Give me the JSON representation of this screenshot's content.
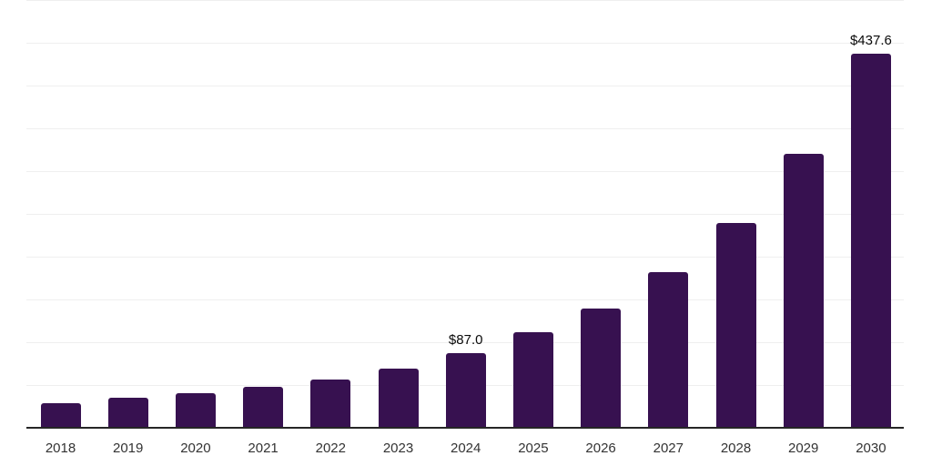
{
  "chart_data": {
    "type": "bar",
    "title": "",
    "xlabel": "",
    "ylabel": "",
    "categories": [
      "2018",
      "2019",
      "2020",
      "2021",
      "2022",
      "2023",
      "2024",
      "2025",
      "2026",
      "2027",
      "2028",
      "2029",
      "2030"
    ],
    "values": [
      28.7,
      35.1,
      40.0,
      47.6,
      56.1,
      69.5,
      87.0,
      111.2,
      139.5,
      182.0,
      239.5,
      320.4,
      437.6
    ],
    "data_labels": {
      "2024": "$87.0",
      "2030": "$437.6"
    },
    "ylim": [
      0,
      500
    ],
    "gridline_step": 50,
    "grid": "horizontal",
    "legend": "none",
    "y_tick_labels_visible": false,
    "styles": {
      "bar_color": "#371150",
      "axis_line_color": "#262626",
      "gridline_color": "#efefef",
      "tick_label_color": "#333333",
      "data_label_color": "#0a0a0a",
      "background": "#ffffff"
    }
  }
}
